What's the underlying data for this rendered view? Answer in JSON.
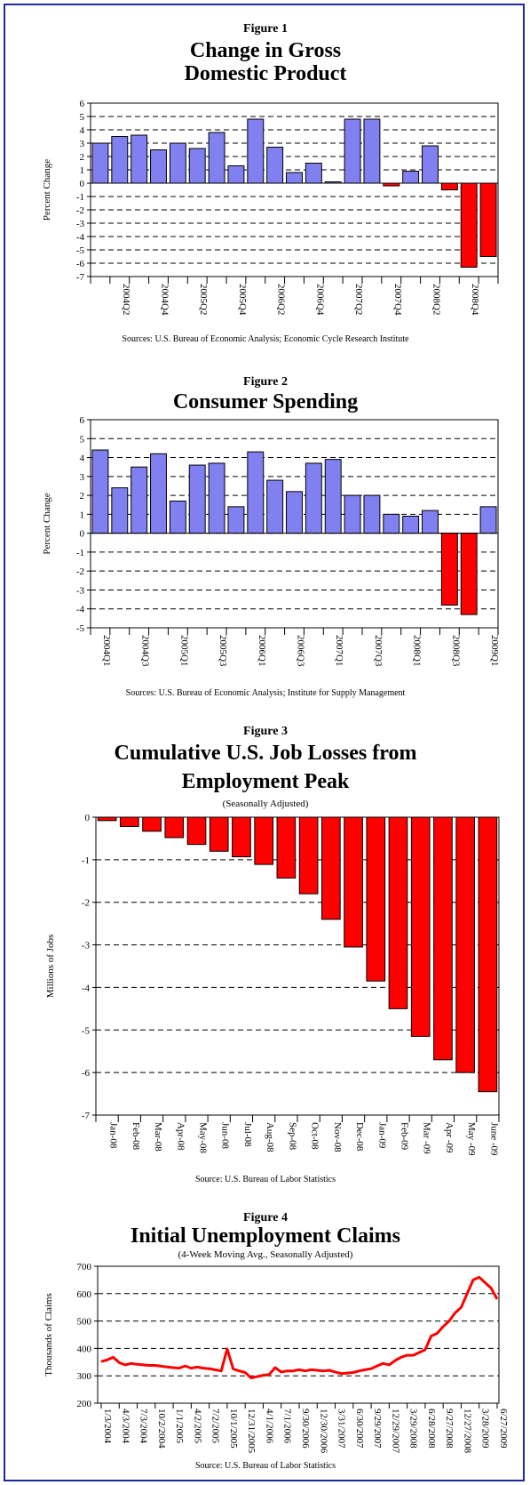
{
  "chart_data": [
    {
      "type": "bar",
      "figure_label": "Figure 1",
      "title_lines": [
        "Change in Gross",
        "Domestic Product"
      ],
      "ylabel": "Percent Change",
      "ylim": [
        -7,
        6
      ],
      "yticks": [
        6,
        5,
        4,
        3,
        2,
        1,
        0,
        -1,
        -2,
        -3,
        -4,
        -5,
        -6,
        -7
      ],
      "grid": "dashed horizontal",
      "categories": [
        "2004Q1",
        "2004Q2",
        "2004Q3",
        "2004Q4",
        "2005Q1",
        "2005Q2",
        "2005Q3",
        "2005Q4",
        "2006Q1",
        "2006Q2",
        "2006Q3",
        "2006Q4",
        "2007Q1",
        "2007Q2",
        "2007Q3",
        "2007Q4",
        "2008Q1",
        "2008Q2",
        "2008Q3",
        "2008Q4",
        "2009Q1"
      ],
      "values": [
        3.0,
        3.5,
        3.6,
        2.5,
        3.0,
        2.6,
        3.8,
        1.3,
        4.8,
        2.7,
        0.8,
        1.5,
        0.1,
        4.8,
        4.8,
        -0.2,
        0.9,
        2.8,
        -0.5,
        -6.3,
        -5.5
      ],
      "xticklabels": [
        "2004Q2",
        "2004Q4",
        "2005Q2",
        "2005Q4",
        "2006Q2",
        "2006Q4",
        "2007Q2",
        "2007Q4",
        "2008Q2",
        "2008Q4"
      ],
      "xticklabel_positions": [
        1,
        3,
        5,
        7,
        9,
        11,
        13,
        15,
        17,
        19
      ],
      "positive_color": "#8080f0",
      "negative_color": "#ff0000",
      "source": "Sources: U.S. Bureau of Economic Analysis; Economic Cycle Research Institute"
    },
    {
      "type": "bar",
      "figure_label": "Figure 2",
      "title_lines": [
        "Consumer Spending"
      ],
      "ylabel": "Percent Change",
      "ylim": [
        -5,
        6
      ],
      "yticks": [
        6,
        5,
        4,
        3,
        2,
        1,
        0,
        -1,
        -2,
        -3,
        -4,
        -5
      ],
      "grid": "dashed horizontal",
      "categories": [
        "2004Q1",
        "2004Q2",
        "2004Q3",
        "2004Q4",
        "2005Q1",
        "2005Q2",
        "2005Q3",
        "2005Q4",
        "2006Q1",
        "2006Q2",
        "2006Q3",
        "2006Q4",
        "2007Q1",
        "2007Q2",
        "2007Q3",
        "2007Q4",
        "2008Q1",
        "2008Q2",
        "2008Q3",
        "2008Q4",
        "2009Q1"
      ],
      "values": [
        4.4,
        2.4,
        3.5,
        4.2,
        1.7,
        3.6,
        3.7,
        1.4,
        4.3,
        2.8,
        2.2,
        3.7,
        3.9,
        2.0,
        2.0,
        1.0,
        0.9,
        1.2,
        -3.8,
        -4.3,
        1.4
      ],
      "xticklabels": [
        "2004Q1",
        "2004Q3",
        "2005Q1",
        "2005Q3",
        "2006Q1",
        "2006Q3",
        "2007Q1",
        "2007Q3",
        "2008Q1",
        "2008Q3",
        "2009Q1"
      ],
      "xticklabel_positions": [
        0,
        2,
        4,
        6,
        8,
        10,
        12,
        14,
        16,
        18,
        20
      ],
      "positive_color": "#8080f0",
      "negative_color": "#ff0000",
      "source": "Sources: U.S. Bureau of Economic Analysis; Institute for Supply Management"
    },
    {
      "type": "bar",
      "figure_label": "Figure 3",
      "title_lines": [
        "Cumulative U.S. Job Losses from",
        "Employment Peak"
      ],
      "subtitle": "(Seasonally Adjusted)",
      "ylabel": "Millions of Jobs",
      "ylim": [
        -7,
        0
      ],
      "yticks": [
        0,
        -1,
        -2,
        -3,
        -4,
        -5,
        -6,
        -7
      ],
      "grid": "dashed horizontal",
      "categories": [
        "Jan-08",
        "Feb-08",
        "Mar-08",
        "Apr-08",
        "May-08",
        "Jun-08",
        "Jul-08",
        "Aug-08",
        "Sep-08",
        "Oct-08",
        "Nov-08",
        "Dec-08",
        "Jan-09",
        "Feb-09",
        "Mar -09",
        "Apr -09",
        "May -09",
        "June -09"
      ],
      "values": [
        -0.08,
        -0.22,
        -0.33,
        -0.48,
        -0.64,
        -0.8,
        -0.93,
        -1.11,
        -1.43,
        -1.8,
        -2.4,
        -3.05,
        -3.85,
        -4.5,
        -5.15,
        -5.7,
        -6.0,
        -6.45
      ],
      "color": "#ff0000",
      "source": "Source: U.S. Bureau of Labor Statistics"
    },
    {
      "type": "line",
      "figure_label": "Figure 4",
      "title_lines": [
        "Initial Unemployment Claims"
      ],
      "subtitle": "(4-Week Moving Avg., Seasonally Adjusted)",
      "ylabel": "Thousands of Claims",
      "ylim": [
        200,
        700
      ],
      "yticks": [
        700,
        600,
        500,
        400,
        300,
        200
      ],
      "grid": "dashed horizontal",
      "xticklabels": [
        "1/3/2004",
        "4/3/2004",
        "7/3/2004",
        "10/2/2004",
        "1/1/2005",
        "4/2/2005",
        "7/2/2005",
        "10/1/2005",
        "12/31/2005",
        "4/1/2006",
        "7/1/2006",
        "9/30/2006",
        "12/30/2006",
        "3/31/2007",
        "6/30/2007",
        "9/29/2007",
        "12/29/2007",
        "3/29/2008",
        "6/28/2008",
        "9/27/2008",
        "12/27/2008",
        "3/28/2009",
        "6/27/2009"
      ],
      "x": [
        "1/3/2004",
        "2/7/2004",
        "3/6/2004",
        "4/3/2004",
        "5/8/2004",
        "6/5/2004",
        "7/3/2004",
        "8/7/2004",
        "9/4/2004",
        "10/2/2004",
        "11/6/2004",
        "12/4/2004",
        "1/1/2005",
        "2/5/2005",
        "3/5/2005",
        "4/2/2005",
        "5/7/2005",
        "6/4/2005",
        "7/2/2005",
        "8/6/2005",
        "9/10/2005",
        "10/1/2005",
        "11/5/2005",
        "12/3/2005",
        "12/31/2005",
        "2/4/2006",
        "3/4/2006",
        "4/1/2006",
        "5/6/2006",
        "6/3/2006",
        "7/1/2006",
        "8/5/2006",
        "9/2/2006",
        "9/30/2006",
        "11/4/2006",
        "12/2/2006",
        "12/30/2006",
        "2/3/2007",
        "3/3/2007",
        "3/31/2007",
        "5/5/2007",
        "6/2/2007",
        "6/30/2007",
        "8/4/2007",
        "9/1/2007",
        "9/29/2007",
        "11/3/2007",
        "12/1/2007",
        "12/29/2007",
        "2/2/2008",
        "3/1/2008",
        "3/29/2008",
        "5/3/2008",
        "5/31/2008",
        "6/28/2008",
        "8/2/2008",
        "8/30/2008",
        "9/27/2008",
        "11/1/2008",
        "11/29/2008",
        "12/27/2008",
        "1/31/2009",
        "2/28/2009",
        "3/28/2009",
        "4/25/2009",
        "5/23/2009",
        "6/27/2009"
      ],
      "values": [
        352,
        358,
        368,
        348,
        340,
        345,
        342,
        340,
        338,
        338,
        335,
        332,
        330,
        328,
        336,
        328,
        332,
        328,
        326,
        322,
        318,
        398,
        325,
        318,
        312,
        292,
        297,
        302,
        305,
        330,
        314,
        318,
        318,
        322,
        318,
        322,
        320,
        318,
        320,
        314,
        308,
        310,
        312,
        318,
        322,
        326,
        336,
        345,
        340,
        356,
        368,
        375,
        375,
        385,
        395,
        445,
        455,
        480,
        500,
        530,
        550,
        600,
        650,
        660,
        640,
        620,
        580
      ],
      "color": "#ff0000",
      "source": "Source: U.S. Bureau of Labor Statistics"
    }
  ]
}
